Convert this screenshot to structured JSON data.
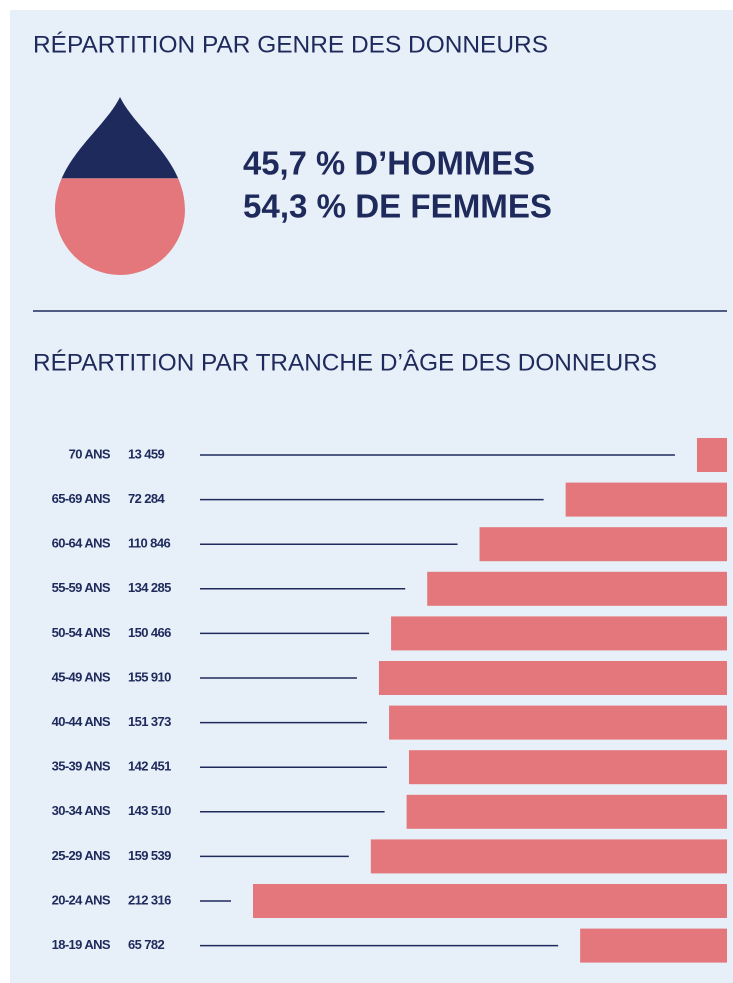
{
  "chart_data": [
    {
      "type": "drop",
      "title": "RÉPARTITION PAR GENRE DES DONNEURS",
      "values": [
        45.7,
        54.3
      ],
      "value_labels": [
        "45,7 % D’HOMMES",
        "54,3 % DE FEMMES"
      ],
      "colors": [
        "#1f2a5c",
        "#e4777b"
      ]
    },
    {
      "type": "bar",
      "title": "RÉPARTITION PAR TRANCHE D’ÂGE DES DONNEURS",
      "categories": [
        "70 ANS",
        "65-69 ANS",
        "60-64 ANS",
        "55-59 ANS",
        "50-54 ANS",
        "45-49 ANS",
        "40-44 ANS",
        "35-39 ANS",
        "30-34 ANS",
        "25-29 ANS",
        "20-24 ANS",
        "18-19 ANS"
      ],
      "values": [
        13459,
        72284,
        110846,
        134285,
        150466,
        155910,
        151373,
        142451,
        143510,
        159539,
        212316,
        65782
      ],
      "value_labels": [
        "13 459",
        "72 284",
        "110 846",
        "134 285",
        "150 466",
        "155 910",
        "151 373",
        "142 451",
        "143 510",
        "159 539",
        "212 316",
        "65 782"
      ],
      "color": "#e4777b",
      "line_color": "#1f2a5c"
    }
  ]
}
